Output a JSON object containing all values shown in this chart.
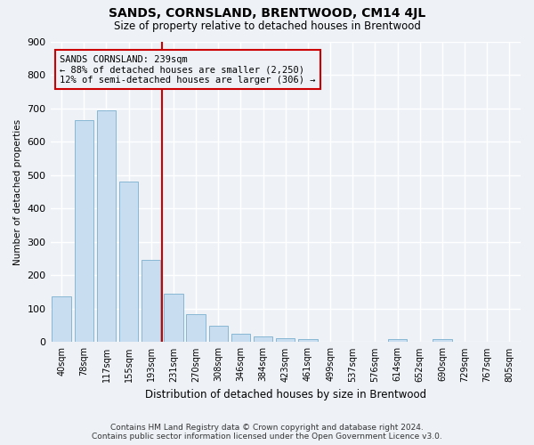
{
  "title": "SANDS, CORNSLAND, BRENTWOOD, CM14 4JL",
  "subtitle": "Size of property relative to detached houses in Brentwood",
  "xlabel": "Distribution of detached houses by size in Brentwood",
  "ylabel": "Number of detached properties",
  "bar_labels": [
    "40sqm",
    "78sqm",
    "117sqm",
    "155sqm",
    "193sqm",
    "231sqm",
    "270sqm",
    "308sqm",
    "346sqm",
    "384sqm",
    "423sqm",
    "461sqm",
    "499sqm",
    "537sqm",
    "576sqm",
    "614sqm",
    "652sqm",
    "690sqm",
    "729sqm",
    "767sqm",
    "805sqm"
  ],
  "bar_values": [
    137,
    665,
    693,
    480,
    247,
    145,
    83,
    50,
    25,
    18,
    13,
    8,
    0,
    0,
    0,
    10,
    0,
    8,
    0,
    0,
    0
  ],
  "bar_color": "#c8ddf0",
  "bar_edge_color": "#7aafcf",
  "vline_color": "#cc0000",
  "vline_x_index": 5,
  "annotation_line1": "SANDS CORNSLAND: 239sqm",
  "annotation_line2": "← 88% of detached houses are smaller (2,250)",
  "annotation_line3": "12% of semi-detached houses are larger (306) →",
  "ylim": [
    0,
    900
  ],
  "yticks": [
    0,
    100,
    200,
    300,
    400,
    500,
    600,
    700,
    800,
    900
  ],
  "footer_line1": "Contains HM Land Registry data © Crown copyright and database right 2024.",
  "footer_line2": "Contains public sector information licensed under the Open Government Licence v3.0.",
  "bg_color": "#eef2f7",
  "grid_color": "#ffffff"
}
